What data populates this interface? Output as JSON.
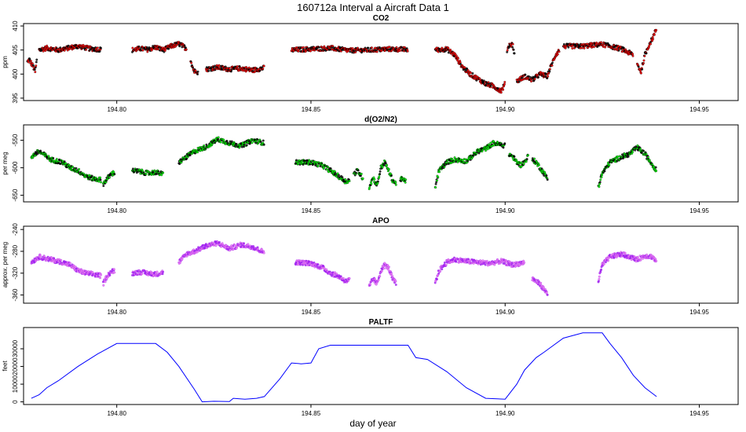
{
  "figure": {
    "title": "160712a   Interval a Aircraft Data 1",
    "xlabel": "day of year"
  },
  "chart_data": [
    {
      "type": "scatter",
      "title": "CO2",
      "ylabel": "ppm",
      "xlim": [
        194.776,
        194.96
      ],
      "ylim": [
        394.5,
        410.5
      ],
      "xticks": [
        194.8,
        194.85,
        194.9,
        194.95
      ],
      "xtick_labels": [
        "194.80",
        "194.85",
        "194.90",
        "194.95"
      ],
      "yticks": [
        395,
        400,
        405,
        410
      ],
      "ytick_labels": [
        "395",
        "400",
        "405",
        "410"
      ],
      "colors": {
        "fill": "#ff0000",
        "edge": "#000000"
      },
      "segments": [
        {
          "x": [
            194.777,
            194.7775,
            194.778,
            194.7785,
            194.779,
            194.7795
          ],
          "y": [
            402.5,
            403.0,
            402.2,
            401.5,
            400.5,
            403.5
          ]
        },
        {
          "x": [
            194.78,
            194.782,
            194.785,
            194.788,
            194.79,
            194.793,
            194.796
          ],
          "y": [
            405.0,
            405.4,
            405.0,
            405.5,
            405.8,
            405.3,
            405.1
          ]
        },
        {
          "x": [
            194.804,
            194.806,
            194.808,
            194.81,
            194.812,
            194.814,
            194.816,
            194.818
          ],
          "y": [
            405.0,
            405.3,
            405.1,
            405.6,
            405.0,
            405.8,
            406.3,
            405.3
          ]
        },
        {
          "x": [
            194.819,
            194.8195,
            194.82,
            194.8205,
            194.821
          ],
          "y": [
            403.0,
            401.5,
            400.5,
            400.8,
            400.2
          ]
        },
        {
          "x": [
            194.823,
            194.826,
            194.829,
            194.832,
            194.835,
            194.838
          ],
          "y": [
            401.0,
            401.4,
            401.0,
            401.2,
            400.8,
            401.3
          ]
        },
        {
          "x": [
            194.845,
            194.85,
            194.855,
            194.86,
            194.865,
            194.87,
            194.875
          ],
          "y": [
            405.0,
            405.2,
            405.4,
            404.9,
            405.0,
            405.2,
            405.1
          ]
        },
        {
          "x": [
            194.882,
            194.885,
            194.887,
            194.889,
            194.891,
            194.893,
            194.895,
            194.897,
            194.899,
            194.9
          ],
          "y": [
            405.0,
            405.2,
            404.0,
            401.5,
            400.0,
            399.0,
            398.0,
            397.5,
            396.5,
            398.0
          ]
        },
        {
          "x": [
            194.9005,
            194.901,
            194.9015,
            194.902,
            194.9025
          ],
          "y": [
            405.0,
            406.0,
            406.2,
            406.0,
            403.5
          ]
        },
        {
          "x": [
            194.903,
            194.905,
            194.907,
            194.909,
            194.911
          ],
          "y": [
            398.5,
            399.5,
            398.8,
            400.0,
            399.5
          ]
        },
        {
          "x": [
            194.911,
            194.912,
            194.913,
            194.914
          ],
          "y": [
            400.0,
            402.0,
            404.0,
            405.0
          ]
        },
        {
          "x": [
            194.915,
            194.92,
            194.925,
            194.93,
            194.933
          ],
          "y": [
            405.8,
            405.8,
            406.2,
            405.2,
            404.0
          ]
        },
        {
          "x": [
            194.934,
            194.935,
            194.936,
            194.937,
            194.938,
            194.939
          ],
          "y": [
            402.0,
            400.5,
            404.0,
            406.0,
            407.5,
            409.5
          ]
        }
      ]
    },
    {
      "type": "scatter",
      "title": "d(O2/N2)",
      "ylabel": "per meg",
      "xlim": [
        194.776,
        194.96
      ],
      "ylim": [
        -662,
        -522
      ],
      "xticks": [
        194.8,
        194.85,
        194.9,
        194.95
      ],
      "xtick_labels": [
        "194.80",
        "194.85",
        "194.90",
        "194.95"
      ],
      "yticks": [
        -550,
        -600,
        -650
      ],
      "ytick_labels": [
        "-550",
        "-600",
        "-650"
      ],
      "colors": {
        "fill": "#00ff00",
        "edge": "#000000"
      },
      "segments": [
        {
          "x": [
            194.778,
            194.78,
            194.783,
            194.786,
            194.788,
            194.79,
            194.792,
            194.794,
            194.796
          ],
          "y": [
            -580,
            -570,
            -585,
            -590,
            -600,
            -605,
            -615,
            -620,
            -622
          ]
        },
        {
          "x": [
            194.7965,
            194.7975,
            194.7985,
            194.7995
          ],
          "y": [
            -630,
            -620,
            -612,
            -608
          ]
        },
        {
          "x": [
            194.804,
            194.806,
            194.808,
            194.81,
            194.812
          ],
          "y": [
            -605,
            -607,
            -610,
            -608,
            -612
          ]
        },
        {
          "x": [
            194.816,
            194.818,
            194.82,
            194.823,
            194.826,
            194.829,
            194.832,
            194.835,
            194.838
          ],
          "y": [
            -590,
            -580,
            -570,
            -562,
            -548,
            -555,
            -560,
            -550,
            -555
          ]
        },
        {
          "x": [
            194.846,
            194.85,
            194.853,
            194.855,
            194.857,
            194.859,
            194.86
          ],
          "y": [
            -590,
            -590,
            -596,
            -605,
            -615,
            -625,
            -622
          ]
        },
        {
          "x": [
            194.861,
            194.862,
            194.863,
            194.8635
          ],
          "y": [
            -612,
            -605,
            -615,
            -620
          ]
        },
        {
          "x": [
            194.865,
            194.866,
            194.867,
            194.868,
            194.869,
            194.87,
            194.871,
            194.872
          ],
          "y": [
            -635,
            -618,
            -632,
            -600,
            -590,
            -605,
            -622,
            -630
          ]
        },
        {
          "x": [
            194.873,
            194.8745
          ],
          "y": [
            -620,
            -625
          ]
        },
        {
          "x": [
            194.882,
            194.883,
            194.885,
            194.887,
            194.89,
            194.893,
            194.895,
            194.897,
            194.9
          ],
          "y": [
            -635,
            -605,
            -590,
            -585,
            -588,
            -570,
            -565,
            -555,
            -560
          ]
        },
        {
          "x": [
            194.901,
            194.902,
            194.903,
            194.904,
            194.905,
            194.906
          ],
          "y": [
            -575,
            -580,
            -590,
            -595,
            -590,
            -578
          ]
        },
        {
          "x": [
            194.907,
            194.908,
            194.909,
            194.91,
            194.911
          ],
          "y": [
            -585,
            -590,
            -600,
            -610,
            -620
          ]
        },
        {
          "x": [
            194.924,
            194.925,
            194.927,
            194.93,
            194.932,
            194.934,
            194.936,
            194.938,
            194.939
          ],
          "y": [
            -635,
            -610,
            -590,
            -580,
            -575,
            -563,
            -575,
            -595,
            -605
          ]
        }
      ]
    },
    {
      "type": "scatter",
      "title": "APO",
      "ylabel": "approx. per meg",
      "xlim": [
        194.776,
        194.96
      ],
      "ylim": [
        -375,
        -234
      ],
      "xticks": [
        194.8,
        194.85,
        194.9,
        194.95
      ],
      "xtick_labels": [
        "194.80",
        "194.85",
        "194.90",
        "194.95"
      ],
      "yticks": [
        -240,
        -280,
        -320,
        -360
      ],
      "ytick_labels": [
        "-240",
        "-280",
        "-320",
        "-360"
      ],
      "colors": {
        "fill": "#ee82ee",
        "edge": "#a020f0"
      },
      "segments": [
        {
          "x": [
            194.778,
            194.78,
            194.783,
            194.786,
            194.788,
            194.79,
            194.792,
            194.794,
            194.796
          ],
          "y": [
            -300,
            -290,
            -295,
            -300,
            -305,
            -315,
            -320,
            -322,
            -325
          ]
        },
        {
          "x": [
            194.7965,
            194.7975,
            194.7985,
            194.7995
          ],
          "y": [
            -340,
            -325,
            -318,
            -315
          ]
        },
        {
          "x": [
            194.804,
            194.806,
            194.808,
            194.81,
            194.812
          ],
          "y": [
            -320,
            -318,
            -320,
            -322,
            -318
          ]
        },
        {
          "x": [
            194.816,
            194.818,
            194.82,
            194.823,
            194.826,
            194.829,
            194.832,
            194.835,
            194.838
          ],
          "y": [
            -300,
            -285,
            -280,
            -270,
            -265,
            -275,
            -268,
            -272,
            -282
          ]
        },
        {
          "x": [
            194.846,
            194.85,
            194.853,
            194.855,
            194.857,
            194.859,
            194.86
          ],
          "y": [
            -300,
            -302,
            -310,
            -320,
            -325,
            -335,
            -332
          ]
        },
        {
          "x": [
            194.865,
            194.866,
            194.867,
            194.868,
            194.869,
            194.87,
            194.871,
            194.872
          ],
          "y": [
            -345,
            -330,
            -340,
            -315,
            -305,
            -310,
            -330,
            -340
          ]
        },
        {
          "x": [
            194.882,
            194.883,
            194.885,
            194.887,
            194.89,
            194.893,
            194.896,
            194.899,
            194.902,
            194.905
          ],
          "y": [
            -340,
            -315,
            -300,
            -295,
            -298,
            -300,
            -302,
            -298,
            -305,
            -300
          ]
        },
        {
          "x": [
            194.907,
            194.908,
            194.909,
            194.91,
            194.911
          ],
          "y": [
            -330,
            -335,
            -340,
            -350,
            -358
          ]
        },
        {
          "x": [
            194.924,
            194.925,
            194.927,
            194.93,
            194.932,
            194.934,
            194.936,
            194.938,
            194.939
          ],
          "y": [
            -335,
            -305,
            -290,
            -285,
            -290,
            -295,
            -288,
            -290,
            -300
          ]
        }
      ]
    },
    {
      "type": "line",
      "title": "PALTF",
      "ylabel": "feet",
      "xlim": [
        194.776,
        194.96
      ],
      "ylim": [
        -1500,
        42000
      ],
      "xticks": [
        194.8,
        194.85,
        194.9,
        194.95
      ],
      "xtick_labels": [
        "194.80",
        "194.85",
        "194.90",
        "194.95"
      ],
      "yticks": [
        0,
        10000,
        20000,
        30000
      ],
      "ytick_labels": [
        "0",
        "10000",
        "20000",
        "30000"
      ],
      "colors": {
        "line": "#0000ff"
      },
      "x": [
        194.778,
        194.78,
        194.782,
        194.785,
        194.79,
        194.795,
        194.8,
        194.805,
        194.81,
        194.813,
        194.816,
        194.82,
        194.822,
        194.825,
        194.829,
        194.83,
        194.833,
        194.836,
        194.838,
        194.842,
        194.845,
        194.8475,
        194.85,
        194.852,
        194.855,
        194.86,
        194.865,
        194.87,
        194.875,
        194.877,
        194.88,
        194.885,
        194.89,
        194.895,
        194.9,
        194.903,
        194.905,
        194.908,
        194.91,
        194.915,
        194.92,
        194.925,
        194.927,
        194.93,
        194.933,
        194.936,
        194.939
      ],
      "y": [
        2000,
        4000,
        8000,
        12000,
        20000,
        27000,
        33000,
        33000,
        33000,
        28000,
        20000,
        7000,
        0,
        300,
        200,
        2000,
        1500,
        2000,
        3000,
        13000,
        22000,
        21500,
        22000,
        30000,
        32000,
        32000,
        32000,
        32000,
        32000,
        25000,
        24000,
        17000,
        8000,
        2000,
        1500,
        10000,
        18000,
        25000,
        28000,
        36000,
        39000,
        39000,
        33000,
        25000,
        15000,
        8000,
        3000
      ]
    }
  ]
}
